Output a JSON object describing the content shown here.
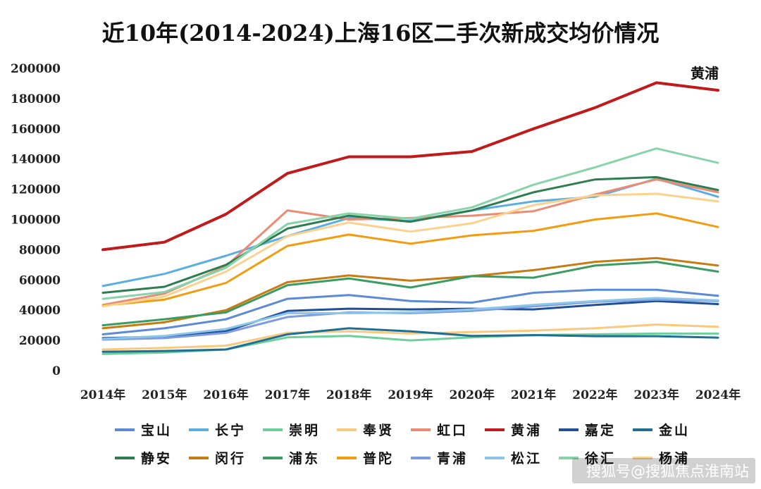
{
  "chart_data": {
    "type": "line",
    "title": "近10年(2014-2024)上海16区二手次新成交均价情况",
    "xlabel": "",
    "ylabel": "",
    "ylim": [
      0,
      200000
    ],
    "yticks": [
      "200000",
      "180000",
      "160000",
      "140000",
      "120000",
      "100000",
      "80000",
      "60000",
      "40000",
      "20000",
      "0"
    ],
    "ytick_values": [
      200000,
      180000,
      160000,
      140000,
      120000,
      100000,
      80000,
      60000,
      40000,
      20000,
      0
    ],
    "categories": [
      "2014年",
      "2015年",
      "2016年",
      "2017年",
      "2018年",
      "2019年",
      "2020年",
      "2021年",
      "2022年",
      "2023年",
      "2024年"
    ],
    "grid": false,
    "legend_position": "bottom",
    "annotation": "黄浦",
    "series": [
      {
        "name": "宝山",
        "color": "#5b8bd6",
        "values": [
          24000,
          28000,
          34000,
          47500,
          50000,
          46000,
          45000,
          51500,
          53500,
          53500,
          49500
        ]
      },
      {
        "name": "长宁",
        "color": "#5aaee0",
        "values": [
          56000,
          64000,
          76000,
          89000,
          101000,
          99000,
          106000,
          112000,
          115000,
          127000,
          115000
        ]
      },
      {
        "name": "崇明",
        "color": "#6ecf9a",
        "values": [
          11000,
          12000,
          14000,
          22000,
          23000,
          20000,
          22000,
          23500,
          24000,
          24500,
          24500
        ]
      },
      {
        "name": "奉贤",
        "color": "#f9c97e",
        "values": [
          14000,
          15000,
          16500,
          25000,
          26000,
          24500,
          25500,
          26500,
          28000,
          30500,
          29000
        ]
      },
      {
        "name": "虹口",
        "color": "#ec8b74",
        "values": [
          43500,
          51000,
          69000,
          106000,
          100000,
          101000,
          102500,
          105500,
          116500,
          126500,
          118000
        ]
      },
      {
        "name": "黄浦",
        "color": "#c01a1a",
        "values": [
          80000,
          85000,
          103500,
          130500,
          141500,
          141500,
          145000,
          160000,
          174000,
          190500,
          185500
        ]
      },
      {
        "name": "嘉定",
        "color": "#1f4f99",
        "values": [
          21500,
          22500,
          26000,
          39500,
          41000,
          40500,
          41000,
          40500,
          43500,
          46000,
          44000
        ]
      },
      {
        "name": "金山",
        "color": "#1f6f94",
        "values": [
          12500,
          13000,
          14000,
          24000,
          28000,
          26000,
          23000,
          23500,
          22800,
          22800,
          21800
        ]
      },
      {
        "name": "静安",
        "color": "#2e7d50",
        "values": [
          51500,
          55500,
          70000,
          94000,
          102500,
          98500,
          106000,
          118000,
          126500,
          128000,
          119500
        ]
      },
      {
        "name": "闵行",
        "color": "#c67c12",
        "values": [
          28000,
          32000,
          40000,
          58500,
          63000,
          59500,
          62500,
          66500,
          72000,
          74500,
          69500
        ]
      },
      {
        "name": "浦东",
        "color": "#3a9c62",
        "values": [
          30000,
          34000,
          38500,
          56500,
          61000,
          55000,
          62500,
          61500,
          69500,
          72000,
          65500
        ]
      },
      {
        "name": "普陀",
        "color": "#f29c12",
        "values": [
          43000,
          47000,
          58000,
          82500,
          90000,
          84000,
          89500,
          92500,
          100000,
          104000,
          95000
        ]
      },
      {
        "name": "青浦",
        "color": "#7d9be0",
        "values": [
          20500,
          21500,
          25000,
          35500,
          38500,
          38000,
          39500,
          42500,
          45500,
          47000,
          46000
        ]
      },
      {
        "name": "松江",
        "color": "#8cc5ea",
        "values": [
          21000,
          23000,
          27500,
          38000,
          38000,
          38500,
          40500,
          43500,
          46000,
          48000,
          46500
        ]
      },
      {
        "name": "徐汇",
        "color": "#88d4aa",
        "values": [
          47500,
          52000,
          68000,
          97000,
          104000,
          100500,
          108000,
          123000,
          134500,
          147000,
          137500
        ]
      },
      {
        "name": "杨浦",
        "color": "#fbd28d",
        "values": [
          42500,
          49000,
          65500,
          89000,
          98000,
          92000,
          97500,
          109500,
          116000,
          117000,
          112000
        ]
      }
    ]
  },
  "watermark": "搜狐号@搜狐焦点淮南站"
}
